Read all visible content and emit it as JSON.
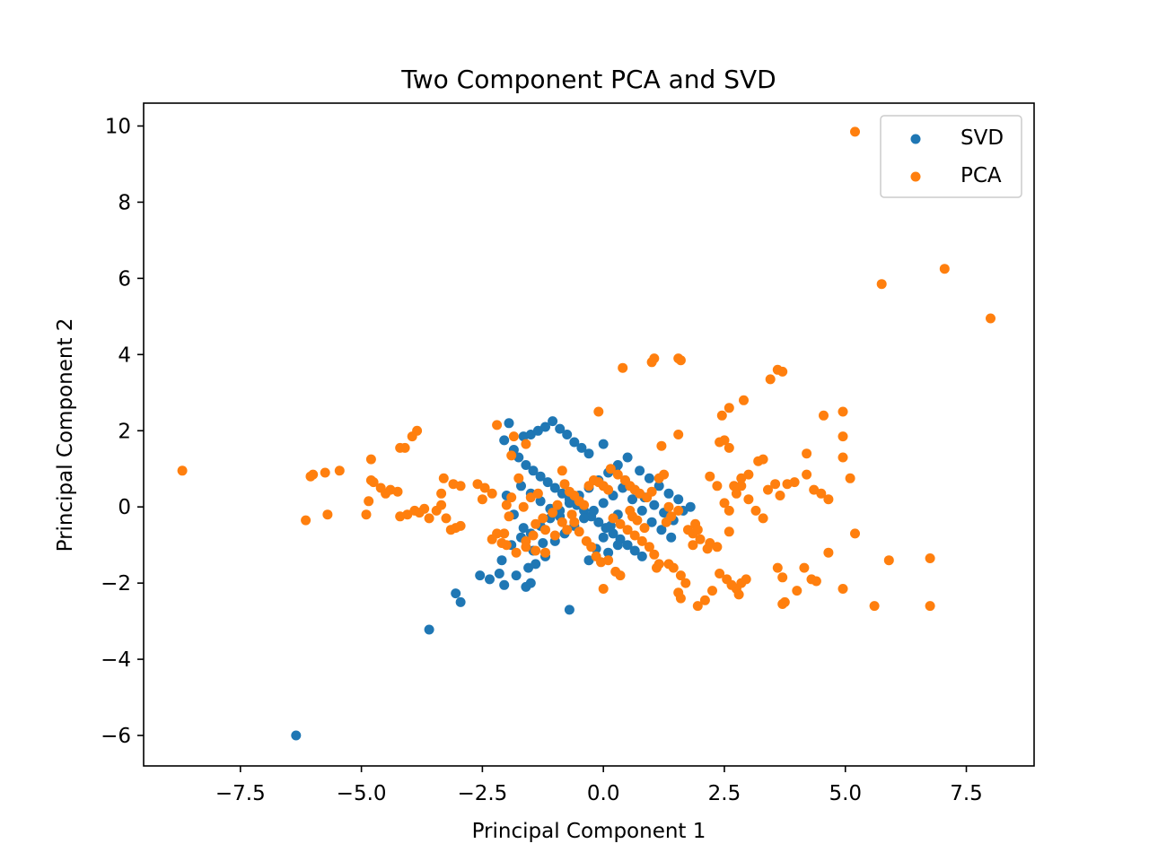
{
  "chart_data": {
    "type": "scatter",
    "title": "Two Component PCA and SVD",
    "xlabel": "Principal Component 1",
    "ylabel": "Principal Component 2",
    "xlim": [
      -9.5,
      8.9
    ],
    "ylim": [
      -6.8,
      10.6
    ],
    "xticks": [
      -7.5,
      -5.0,
      -2.5,
      0.0,
      2.5,
      5.0,
      7.5
    ],
    "yticks": [
      -6,
      -4,
      -2,
      0,
      2,
      4,
      6,
      8,
      10
    ],
    "xtick_labels": [
      "−7.5",
      "−5.0",
      "−2.5",
      "0.0",
      "2.5",
      "5.0",
      "7.5"
    ],
    "ytick_labels": [
      "−6",
      "−4",
      "−2",
      "0",
      "2",
      "4",
      "6",
      "8",
      "10"
    ],
    "grid": false,
    "legend": "top-right",
    "series": [
      {
        "name": "SVD",
        "color": "#1f77b4",
        "points": [
          [
            -6.35,
            -6.0
          ],
          [
            -3.6,
            -3.22
          ],
          [
            -3.05,
            -2.27
          ],
          [
            -2.95,
            -2.5
          ],
          [
            -0.7,
            -2.7
          ],
          [
            -2.55,
            -1.8
          ],
          [
            -2.35,
            -1.9
          ],
          [
            -2.15,
            -1.75
          ],
          [
            -2.05,
            -2.05
          ],
          [
            -1.8,
            -1.8
          ],
          [
            -1.6,
            -2.1
          ],
          [
            -1.5,
            -2.0
          ],
          [
            -1.55,
            -1.6
          ],
          [
            -1.4,
            -1.5
          ],
          [
            -1.2,
            -1.3
          ],
          [
            -2.1,
            -1.4
          ],
          [
            -1.9,
            -1.0
          ],
          [
            -1.7,
            -0.8
          ],
          [
            -1.5,
            -0.7
          ],
          [
            -1.3,
            -0.5
          ],
          [
            -1.1,
            -0.3
          ],
          [
            -0.9,
            -0.1
          ],
          [
            -0.7,
            0.1
          ],
          [
            -0.5,
            0.3
          ],
          [
            -0.3,
            0.5
          ],
          [
            -0.1,
            0.7
          ],
          [
            0.1,
            0.9
          ],
          [
            0.3,
            1.1
          ],
          [
            0.5,
            1.3
          ],
          [
            -1.95,
            2.2
          ],
          [
            -2.05,
            1.75
          ],
          [
            -1.85,
            1.5
          ],
          [
            -1.65,
            1.85
          ],
          [
            -1.5,
            1.9
          ],
          [
            -1.35,
            2.0
          ],
          [
            -1.2,
            2.1
          ],
          [
            -1.05,
            2.25
          ],
          [
            -0.9,
            2.05
          ],
          [
            -0.75,
            1.9
          ],
          [
            -0.6,
            1.7
          ],
          [
            -0.45,
            1.55
          ],
          [
            -0.3,
            1.4
          ],
          [
            -1.75,
            1.3
          ],
          [
            -1.6,
            1.1
          ],
          [
            -1.45,
            0.95
          ],
          [
            -1.3,
            0.8
          ],
          [
            -1.15,
            0.65
          ],
          [
            -1.0,
            0.5
          ],
          [
            -0.85,
            0.35
          ],
          [
            -0.7,
            0.2
          ],
          [
            -0.55,
            0.05
          ],
          [
            -0.4,
            -0.1
          ],
          [
            -0.25,
            -0.25
          ],
          [
            -0.1,
            -0.4
          ],
          [
            0.05,
            -0.55
          ],
          [
            0.2,
            -0.7
          ],
          [
            0.35,
            -0.85
          ],
          [
            0.5,
            -1.0
          ],
          [
            0.65,
            -1.15
          ],
          [
            0.8,
            -1.3
          ],
          [
            0.0,
            1.65
          ],
          [
            0.25,
            1.0
          ],
          [
            0.45,
            0.7
          ],
          [
            0.65,
            0.45
          ],
          [
            0.85,
            0.25
          ],
          [
            1.05,
            0.05
          ],
          [
            1.25,
            -0.15
          ],
          [
            1.45,
            -0.35
          ],
          [
            1.65,
            -0.1
          ],
          [
            1.8,
            0.0
          ],
          [
            1.55,
            0.2
          ],
          [
            1.35,
            0.35
          ],
          [
            1.15,
            0.55
          ],
          [
            0.95,
            0.75
          ],
          [
            0.75,
            0.95
          ],
          [
            -1.0,
            -0.9
          ],
          [
            -0.8,
            -0.7
          ],
          [
            -0.6,
            -0.5
          ],
          [
            -0.4,
            -0.3
          ],
          [
            -0.2,
            -0.1
          ],
          [
            0.0,
            0.1
          ],
          [
            0.2,
            0.3
          ],
          [
            0.4,
            0.5
          ],
          [
            0.6,
            0.2
          ],
          [
            0.8,
            -0.1
          ],
          [
            1.0,
            -0.4
          ],
          [
            1.2,
            -0.6
          ],
          [
            1.4,
            -0.8
          ],
          [
            0.1,
            -1.2
          ],
          [
            0.3,
            -1.0
          ],
          [
            -0.3,
            -1.4
          ],
          [
            -0.15,
            -1.1
          ],
          [
            0.0,
            -0.8
          ],
          [
            0.15,
            -0.5
          ],
          [
            0.3,
            -0.2
          ],
          [
            -1.25,
            -0.95
          ],
          [
            -1.45,
            -1.15
          ],
          [
            -1.65,
            -0.55
          ],
          [
            -1.85,
            -0.2
          ],
          [
            -2.0,
            0.3
          ],
          [
            -1.7,
            0.55
          ],
          [
            -1.5,
            0.35
          ],
          [
            -1.3,
            0.15
          ],
          [
            -1.1,
            -0.05
          ],
          [
            -0.9,
            -0.25
          ]
        ]
      },
      {
        "name": "PCA",
        "color": "#ff7f0e",
        "points": [
          [
            -8.7,
            0.95
          ],
          [
            5.2,
            9.85
          ],
          [
            7.05,
            6.25
          ],
          [
            5.75,
            5.85
          ],
          [
            8.0,
            4.95
          ],
          [
            0.4,
            3.65
          ],
          [
            1.0,
            3.8
          ],
          [
            1.05,
            3.9
          ],
          [
            1.55,
            3.9
          ],
          [
            1.6,
            3.85
          ],
          [
            3.6,
            3.6
          ],
          [
            3.7,
            3.55
          ],
          [
            3.45,
            3.35
          ],
          [
            2.9,
            2.8
          ],
          [
            2.6,
            2.6
          ],
          [
            2.45,
            2.4
          ],
          [
            4.55,
            2.4
          ],
          [
            4.95,
            2.5
          ],
          [
            -0.1,
            2.5
          ],
          [
            -2.2,
            2.15
          ],
          [
            -3.85,
            2.0
          ],
          [
            -3.95,
            1.85
          ],
          [
            -4.1,
            1.55
          ],
          [
            -4.2,
            1.55
          ],
          [
            -4.8,
            1.25
          ],
          [
            -5.45,
            0.95
          ],
          [
            -5.75,
            0.9
          ],
          [
            -6.0,
            0.85
          ],
          [
            -6.05,
            0.8
          ],
          [
            -4.8,
            0.7
          ],
          [
            -4.75,
            0.65
          ],
          [
            -4.6,
            0.5
          ],
          [
            -4.5,
            0.35
          ],
          [
            -4.4,
            0.45
          ],
          [
            -4.25,
            0.4
          ],
          [
            -4.85,
            0.15
          ],
          [
            -4.9,
            -0.2
          ],
          [
            -5.7,
            -0.2
          ],
          [
            -6.15,
            -0.35
          ],
          [
            -4.2,
            -0.25
          ],
          [
            -4.05,
            -0.2
          ],
          [
            -3.9,
            -0.1
          ],
          [
            -3.8,
            -0.15
          ],
          [
            -3.7,
            -0.05
          ],
          [
            -3.6,
            -0.3
          ],
          [
            -3.45,
            -0.1
          ],
          [
            -3.35,
            0.05
          ],
          [
            -3.25,
            -0.3
          ],
          [
            -3.15,
            -0.6
          ],
          [
            -3.05,
            -0.55
          ],
          [
            -2.95,
            -0.5
          ],
          [
            -3.3,
            0.75
          ],
          [
            -3.1,
            0.6
          ],
          [
            -2.95,
            0.55
          ],
          [
            -3.35,
            0.35
          ],
          [
            -2.6,
            0.6
          ],
          [
            -2.45,
            0.5
          ],
          [
            -2.3,
            0.35
          ],
          [
            -2.5,
            0.2
          ],
          [
            -2.2,
            -0.7
          ],
          [
            -2.3,
            -0.85
          ],
          [
            -2.0,
            -1.0
          ],
          [
            -1.8,
            -1.2
          ],
          [
            -1.6,
            -1.05
          ],
          [
            -1.4,
            -1.15
          ],
          [
            -1.2,
            -1.2
          ],
          [
            -1.85,
            1.85
          ],
          [
            -1.6,
            1.65
          ],
          [
            -1.9,
            1.35
          ],
          [
            -1.75,
            0.75
          ],
          [
            -1.9,
            0.25
          ],
          [
            -2.0,
            0.05
          ],
          [
            -1.95,
            -0.25
          ],
          [
            -1.65,
            0.0
          ],
          [
            -1.5,
            0.25
          ],
          [
            -1.35,
            0.35
          ],
          [
            -1.4,
            -0.45
          ],
          [
            -1.2,
            -0.6
          ],
          [
            -1.0,
            -0.75
          ],
          [
            -0.85,
            0.95
          ],
          [
            -0.8,
            0.6
          ],
          [
            -0.7,
            0.4
          ],
          [
            -0.6,
            0.3
          ],
          [
            -0.5,
            0.15
          ],
          [
            -0.4,
            0.05
          ],
          [
            -0.3,
            0.55
          ],
          [
            -0.2,
            0.7
          ],
          [
            -0.1,
            0.65
          ],
          [
            0.0,
            0.55
          ],
          [
            0.1,
            0.45
          ],
          [
            -0.6,
            -0.4
          ],
          [
            -0.5,
            -0.65
          ],
          [
            -0.35,
            -0.9
          ],
          [
            -0.25,
            -1.05
          ],
          [
            -0.15,
            -1.3
          ],
          [
            -0.05,
            -1.45
          ],
          [
            0.1,
            -1.4
          ],
          [
            0.25,
            -1.7
          ],
          [
            0.35,
            -1.8
          ],
          [
            0.0,
            -2.15
          ],
          [
            0.15,
            1.0
          ],
          [
            0.3,
            0.85
          ],
          [
            0.45,
            0.7
          ],
          [
            0.55,
            0.55
          ],
          [
            0.65,
            0.45
          ],
          [
            0.75,
            0.35
          ],
          [
            0.9,
            0.25
          ],
          [
            1.0,
            0.4
          ],
          [
            1.15,
            0.75
          ],
          [
            1.25,
            0.85
          ],
          [
            0.2,
            -0.3
          ],
          [
            0.35,
            -0.45
          ],
          [
            0.5,
            -0.6
          ],
          [
            0.65,
            -0.75
          ],
          [
            0.8,
            -0.9
          ],
          [
            0.95,
            -1.05
          ],
          [
            1.05,
            -1.25
          ],
          [
            1.15,
            -1.5
          ],
          [
            1.1,
            -1.6
          ],
          [
            1.35,
            -1.5
          ],
          [
            1.45,
            -1.6
          ],
          [
            1.6,
            -1.8
          ],
          [
            1.7,
            -2.0
          ],
          [
            1.55,
            -2.25
          ],
          [
            1.6,
            -2.4
          ],
          [
            1.75,
            -0.6
          ],
          [
            1.9,
            -0.45
          ],
          [
            1.85,
            -0.7
          ],
          [
            2.0,
            -0.85
          ],
          [
            2.2,
            -0.95
          ],
          [
            1.95,
            -2.6
          ],
          [
            2.1,
            -2.45
          ],
          [
            2.25,
            -2.2
          ],
          [
            2.4,
            -1.75
          ],
          [
            2.55,
            -1.9
          ],
          [
            2.75,
            -2.15
          ],
          [
            2.85,
            -2.0
          ],
          [
            2.95,
            -1.9
          ],
          [
            2.8,
            -2.3
          ],
          [
            2.65,
            -2.05
          ],
          [
            2.6,
            -0.1
          ],
          [
            2.75,
            0.35
          ],
          [
            2.85,
            0.55
          ],
          [
            3.0,
            0.2
          ],
          [
            3.15,
            -0.1
          ],
          [
            3.3,
            -0.3
          ],
          [
            3.4,
            0.45
          ],
          [
            3.55,
            0.6
          ],
          [
            3.65,
            0.3
          ],
          [
            3.8,
            0.6
          ],
          [
            3.95,
            0.65
          ],
          [
            4.2,
            0.85
          ],
          [
            4.35,
            0.45
          ],
          [
            4.5,
            0.35
          ],
          [
            4.65,
            0.2
          ],
          [
            3.6,
            -1.6
          ],
          [
            3.7,
            -1.85
          ],
          [
            3.75,
            -2.5
          ],
          [
            3.7,
            -2.55
          ],
          [
            4.0,
            -2.2
          ],
          [
            4.15,
            -1.6
          ],
          [
            4.3,
            -1.9
          ],
          [
            4.4,
            -1.95
          ],
          [
            4.65,
            -1.2
          ],
          [
            4.95,
            -2.15
          ],
          [
            5.6,
            -2.6
          ],
          [
            5.9,
            -1.4
          ],
          [
            6.75,
            -1.35
          ],
          [
            6.75,
            -2.6
          ],
          [
            5.2,
            -0.7
          ],
          [
            4.95,
            1.85
          ],
          [
            4.95,
            1.3
          ],
          [
            5.1,
            0.75
          ],
          [
            4.2,
            1.4
          ],
          [
            3.2,
            1.2
          ],
          [
            3.3,
            1.25
          ],
          [
            3.0,
            0.85
          ],
          [
            2.85,
            0.75
          ],
          [
            2.4,
            1.7
          ],
          [
            2.5,
            1.75
          ],
          [
            2.6,
            1.55
          ],
          [
            2.7,
            0.55
          ],
          [
            2.2,
            0.8
          ],
          [
            2.35,
            0.55
          ],
          [
            2.5,
            0.1
          ],
          [
            2.6,
            -0.65
          ],
          [
            2.35,
            -1.05
          ],
          [
            2.15,
            -1.1
          ],
          [
            1.95,
            -0.6
          ],
          [
            1.85,
            -1.0
          ],
          [
            1.55,
            -0.1
          ],
          [
            1.4,
            -0.25
          ],
          [
            1.3,
            -0.4
          ],
          [
            1.35,
            0.0
          ],
          [
            1.55,
            1.9
          ],
          [
            1.2,
            1.6
          ],
          [
            0.6,
            -0.25
          ],
          [
            0.55,
            -0.1
          ],
          [
            0.7,
            -0.35
          ],
          [
            0.85,
            -0.55
          ],
          [
            -2.05,
            -0.7
          ],
          [
            -2.1,
            -0.95
          ],
          [
            -1.6,
            -0.9
          ],
          [
            -1.45,
            -0.75
          ],
          [
            -1.25,
            -0.3
          ],
          [
            -1.05,
            -0.15
          ],
          [
            -0.95,
            0.05
          ],
          [
            -0.85,
            -0.4
          ],
          [
            -0.75,
            -0.6
          ],
          [
            -0.65,
            -0.2
          ]
        ]
      }
    ]
  }
}
